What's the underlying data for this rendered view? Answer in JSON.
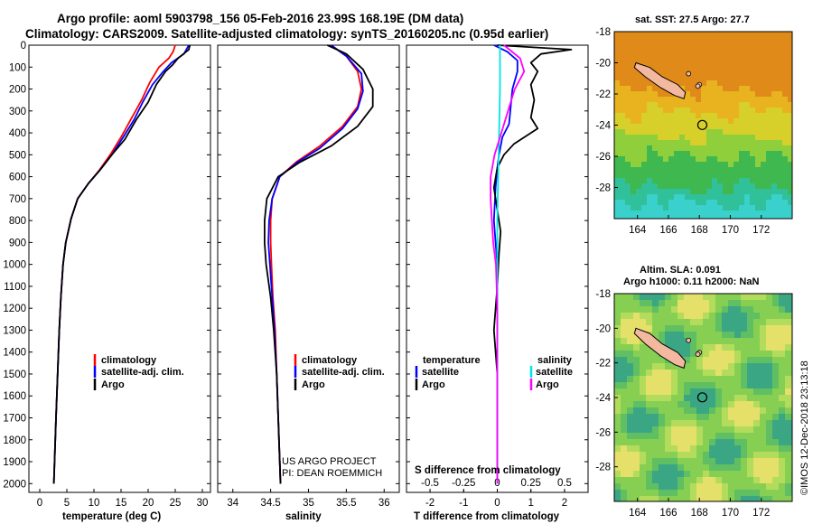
{
  "header": {
    "line1": "Argo profile: aoml 5903798_156 05-Feb-2016 23.99S 168.19E (DM data)",
    "line2": "Climatology: CARS2009. Satellite-adjusted climatology: synTS_20160205.nc (0.95d earlier)"
  },
  "colors": {
    "climatology": "#ff0000",
    "satellite": "#0000ff",
    "argo": "#000000",
    "sat_salinity": "#00e5e5",
    "argo_salinity": "#ff00ff"
  },
  "chart_data": [
    {
      "type": "line",
      "xlabel": "temperature (deg C)",
      "xlim": [
        -2,
        31.5
      ],
      "ylim": [
        2040,
        0
      ],
      "xticks": [
        0,
        5,
        10,
        15,
        20,
        25,
        30
      ],
      "yticks": [
        0,
        100,
        200,
        300,
        400,
        500,
        600,
        700,
        800,
        900,
        1000,
        1100,
        1200,
        1300,
        1400,
        1500,
        1600,
        1700,
        1800,
        1900,
        2000
      ],
      "legend": {
        "position": "bottom-right",
        "entries": [
          "climatology",
          "satellite-adj. clim.",
          "Argo"
        ]
      },
      "series": [
        {
          "name": "climatology",
          "color": "#ff0000",
          "points": [
            [
              25.0,
              0
            ],
            [
              24.6,
              30
            ],
            [
              23.8,
              60
            ],
            [
              22.0,
              100
            ],
            [
              20.3,
              170
            ],
            [
              18.8,
              250
            ],
            [
              17.0,
              330
            ],
            [
              15.0,
              420
            ],
            [
              13.0,
              500
            ],
            [
              11.0,
              570
            ],
            [
              9.0,
              630
            ],
            [
              7.0,
              700
            ],
            [
              5.8,
              790
            ],
            [
              4.8,
              900
            ],
            [
              4.3,
              1000
            ],
            [
              3.9,
              1150
            ],
            [
              3.6,
              1300
            ],
            [
              3.3,
              1500
            ],
            [
              3.0,
              1700
            ],
            [
              2.8,
              1850
            ],
            [
              2.6,
              2000
            ]
          ]
        },
        {
          "name": "satellite-adj. clim.",
          "color": "#0000ff",
          "points": [
            [
              27.5,
              0
            ],
            [
              26.6,
              40
            ],
            [
              24.3,
              80
            ],
            [
              22.8,
              120
            ],
            [
              20.8,
              180
            ],
            [
              19.0,
              260
            ],
            [
              17.4,
              340
            ],
            [
              15.4,
              420
            ],
            [
              13.3,
              500
            ],
            [
              11.1,
              570
            ],
            [
              9.0,
              630
            ],
            [
              7.0,
              700
            ],
            [
              5.8,
              790
            ],
            [
              4.8,
              900
            ],
            [
              4.3,
              1000
            ],
            [
              3.9,
              1150
            ],
            [
              3.6,
              1300
            ],
            [
              3.3,
              1500
            ],
            [
              3.0,
              1700
            ],
            [
              2.8,
              1850
            ],
            [
              2.6,
              2000
            ]
          ]
        },
        {
          "name": "Argo",
          "color": "#000000",
          "points": [
            [
              27.7,
              0
            ],
            [
              27.5,
              20
            ],
            [
              25.5,
              60
            ],
            [
              24.5,
              90
            ],
            [
              23.2,
              120
            ],
            [
              21.5,
              180
            ],
            [
              20.0,
              260
            ],
            [
              17.8,
              340
            ],
            [
              15.7,
              430
            ],
            [
              13.3,
              500
            ],
            [
              11.1,
              570
            ],
            [
              9.0,
              630
            ],
            [
              7.0,
              700
            ],
            [
              5.8,
              790
            ],
            [
              4.8,
              900
            ],
            [
              4.3,
              1000
            ],
            [
              3.9,
              1150
            ],
            [
              3.6,
              1300
            ],
            [
              3.3,
              1500
            ],
            [
              3.0,
              1700
            ],
            [
              2.8,
              1850
            ],
            [
              2.6,
              2000
            ]
          ]
        }
      ]
    },
    {
      "type": "line",
      "xlabel": "salinity",
      "xlim": [
        33.8,
        36.2
      ],
      "ylim": [
        2040,
        0
      ],
      "xticks": [
        34,
        34.5,
        35,
        35.5,
        36
      ],
      "legend": {
        "position": "bottom-right",
        "entries": [
          "climatology",
          "satellite-adj. clim.",
          "Argo"
        ]
      },
      "annotations": [
        "US ARGO PROJECT",
        "PI: DEAN ROEMMICH"
      ],
      "series": [
        {
          "name": "climatology",
          "color": "#ff0000",
          "points": [
            [
              35.3,
              0
            ],
            [
              35.5,
              50
            ],
            [
              35.65,
              120
            ],
            [
              35.7,
              200
            ],
            [
              35.65,
              280
            ],
            [
              35.45,
              370
            ],
            [
              35.15,
              460
            ],
            [
              34.85,
              530
            ],
            [
              34.62,
              600
            ],
            [
              34.52,
              700
            ],
            [
              34.5,
              800
            ],
            [
              34.5,
              900
            ],
            [
              34.51,
              1000
            ],
            [
              34.53,
              1150
            ],
            [
              34.56,
              1300
            ],
            [
              34.58,
              1500
            ],
            [
              34.6,
              1700
            ],
            [
              34.62,
              1900
            ],
            [
              34.63,
              2000
            ]
          ]
        },
        {
          "name": "satellite-adj. clim.",
          "color": "#0000ff",
          "points": [
            [
              35.3,
              0
            ],
            [
              35.5,
              50
            ],
            [
              35.7,
              130
            ],
            [
              35.72,
              210
            ],
            [
              35.65,
              290
            ],
            [
              35.45,
              380
            ],
            [
              35.15,
              470
            ],
            [
              34.85,
              535
            ],
            [
              34.62,
              600
            ],
            [
              34.52,
              700
            ],
            [
              34.48,
              800
            ],
            [
              34.47,
              900
            ],
            [
              34.49,
              1000
            ],
            [
              34.52,
              1150
            ],
            [
              34.55,
              1300
            ],
            [
              34.58,
              1500
            ],
            [
              34.6,
              1700
            ],
            [
              34.62,
              1900
            ],
            [
              34.63,
              2000
            ]
          ]
        },
        {
          "name": "Argo",
          "color": "#000000",
          "points": [
            [
              35.25,
              0
            ],
            [
              35.5,
              40
            ],
            [
              35.72,
              110
            ],
            [
              35.85,
              200
            ],
            [
              35.85,
              280
            ],
            [
              35.65,
              370
            ],
            [
              35.3,
              460
            ],
            [
              34.88,
              535
            ],
            [
              34.6,
              600
            ],
            [
              34.45,
              700
            ],
            [
              34.42,
              800
            ],
            [
              34.42,
              900
            ],
            [
              34.44,
              1000
            ],
            [
              34.5,
              1150
            ],
            [
              34.54,
              1300
            ],
            [
              34.58,
              1500
            ],
            [
              34.6,
              1700
            ],
            [
              34.62,
              1900
            ],
            [
              34.63,
              2000
            ]
          ]
        }
      ]
    },
    {
      "type": "line",
      "xlabel": "T difference from climatology",
      "xlabel_top": "S difference from climatology",
      "xlim": [
        -2.7,
        2.7
      ],
      "ylim": [
        2040,
        0
      ],
      "xticks": [
        -2,
        -1,
        0,
        1,
        2
      ],
      "xticks_top": [
        -0.5,
        -0.25,
        0,
        0.25,
        0.5
      ],
      "legend": {
        "position": "bottom",
        "temperature_title": "temperature",
        "salinity_title": "salinity",
        "temperature_entries": [
          "satellite",
          "Argo"
        ],
        "salinity_entries": [
          "satellite",
          "Argo"
        ]
      },
      "series": [
        {
          "name": "satellite (T)",
          "color": "#0000ff",
          "points": [
            [
              -0.1,
              0
            ],
            [
              0.3,
              30
            ],
            [
              0.6,
              70
            ],
            [
              0.6,
              120
            ],
            [
              0.45,
              200
            ],
            [
              0.4,
              280
            ],
            [
              0.35,
              360
            ],
            [
              0.15,
              420
            ],
            [
              0.05,
              500
            ],
            [
              0.0,
              560
            ],
            [
              -0.05,
              650
            ],
            [
              -0.1,
              800
            ],
            [
              -0.05,
              900
            ],
            [
              0,
              1000
            ],
            [
              0,
              1500
            ],
            [
              0,
              2000
            ]
          ]
        },
        {
          "name": "Argo (T)",
          "color": "#000000",
          "points": [
            [
              0.0,
              0
            ],
            [
              2.2,
              20
            ],
            [
              1.3,
              40
            ],
            [
              1.0,
              80
            ],
            [
              1.2,
              120
            ],
            [
              1.0,
              180
            ],
            [
              1.1,
              250
            ],
            [
              1.0,
              330
            ],
            [
              1.2,
              380
            ],
            [
              0.5,
              450
            ],
            [
              0.2,
              500
            ],
            [
              0.0,
              560
            ],
            [
              -0.1,
              650
            ],
            [
              0.0,
              750
            ],
            [
              0.1,
              850
            ],
            [
              0.05,
              950
            ],
            [
              0.0,
              1100
            ],
            [
              -0.1,
              1300
            ],
            [
              0.0,
              1500
            ],
            [
              0.0,
              2000
            ]
          ]
        },
        {
          "name": "satellite (S)",
          "color": "#00e5e5",
          "points": [
            [
              0.02,
              0
            ],
            [
              0.02,
              200
            ],
            [
              0.01,
              500
            ],
            [
              0.0,
              800
            ],
            [
              0.0,
              1200
            ],
            [
              0.0,
              2000
            ]
          ]
        },
        {
          "name": "Argo (S)",
          "color": "#ff00ff",
          "points": [
            [
              0.05,
              0
            ],
            [
              0.17,
              60
            ],
            [
              0.2,
              120
            ],
            [
              0.13,
              200
            ],
            [
              0.08,
              300
            ],
            [
              0.03,
              400
            ],
            [
              -0.02,
              500
            ],
            [
              -0.05,
              600
            ],
            [
              -0.05,
              700
            ],
            [
              -0.04,
              800
            ],
            [
              -0.03,
              900
            ],
            [
              -0.01,
              1000
            ],
            [
              0.0,
              1200
            ],
            [
              0.0,
              2000
            ]
          ]
        }
      ]
    },
    {
      "type": "heatmap",
      "title": "sat. SST: 27.5 Argo: 27.7",
      "xlim": [
        162.5,
        174
      ],
      "ylim": [
        -30,
        -18
      ],
      "xticks": [
        164,
        166,
        168,
        170,
        172
      ],
      "yticks": [
        -18,
        -20,
        -22,
        -24,
        -26,
        -28
      ],
      "argo_position": [
        168.19,
        -23.99
      ]
    },
    {
      "type": "heatmap",
      "title_line1": "Altim. SLA: 0.091",
      "title_line2": "Argo h1000: 0.11 h2000: NaN",
      "xlim": [
        162.5,
        174
      ],
      "ylim": [
        -30,
        -18
      ],
      "xticks": [
        164,
        166,
        168,
        170,
        172
      ],
      "yticks": [
        -18,
        -20,
        -22,
        -24,
        -26,
        -28
      ],
      "argo_position": [
        168.19,
        -23.99
      ]
    }
  ],
  "footer": {
    "stamp": "©IMOS 12-Dec-2018 23:13:18"
  }
}
